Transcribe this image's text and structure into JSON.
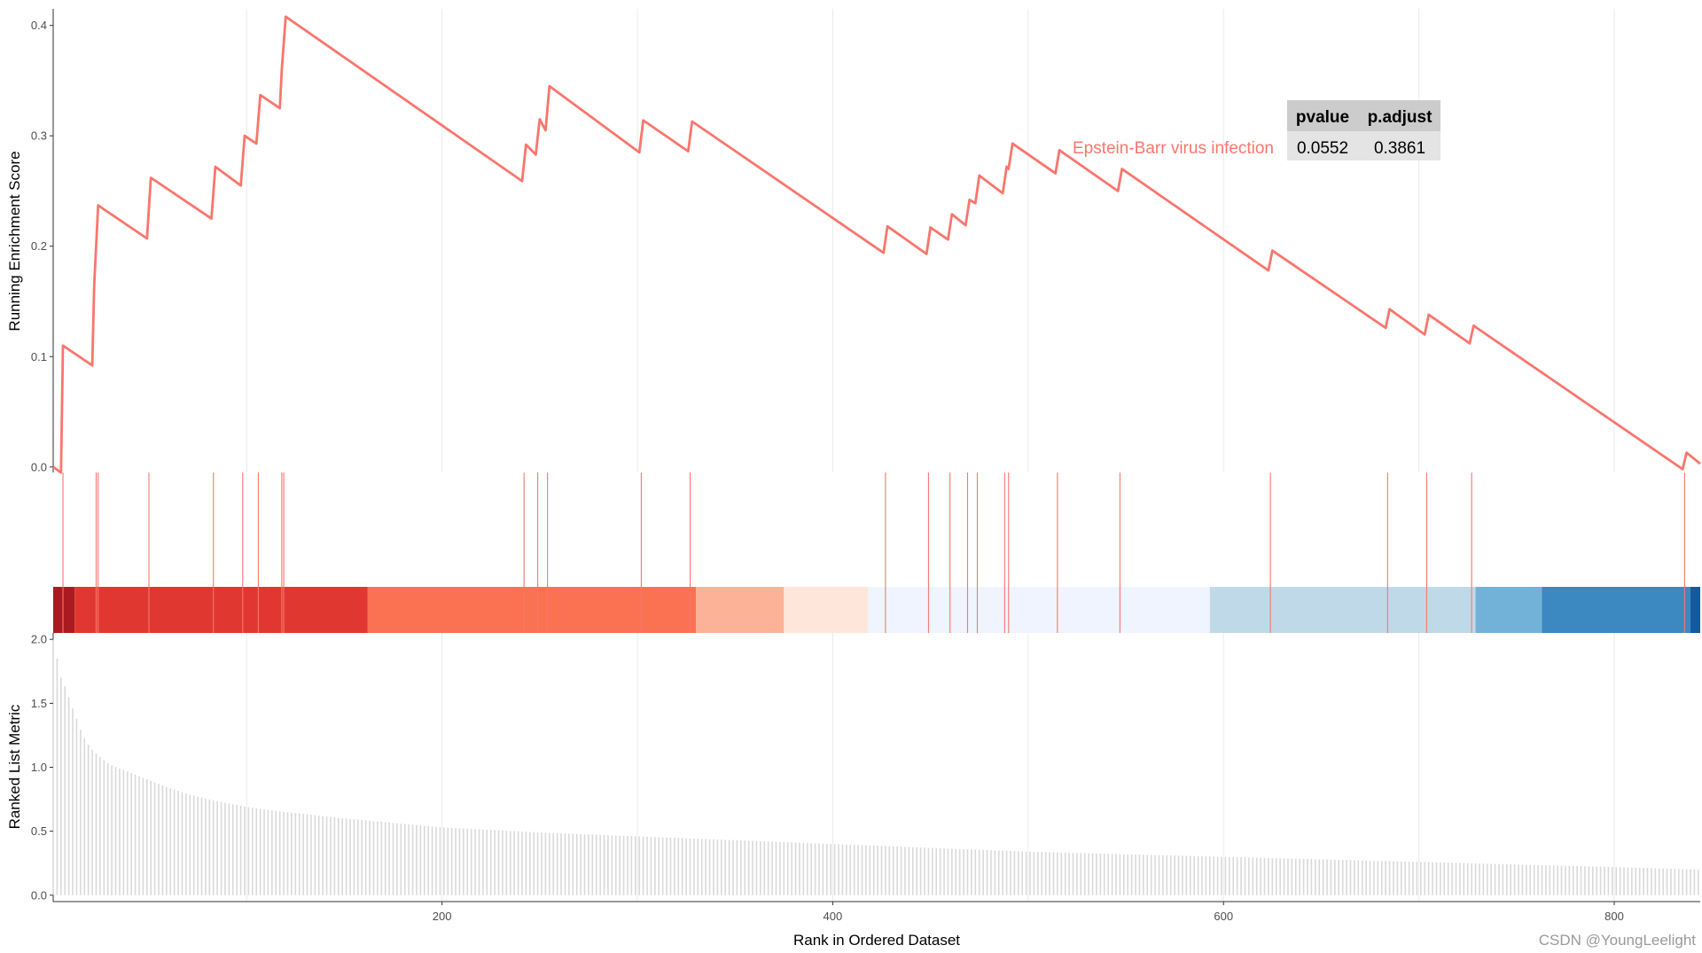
{
  "chart_data": {
    "type": "line",
    "gene_set": "Epstein-Barr virus infection",
    "line_color": "#F8766D",
    "stats_table": {
      "headers": [
        "pvalue",
        "p.adjust"
      ],
      "values": [
        "0.0552",
        "0.3861"
      ]
    },
    "x_axis": {
      "label": "Rank in Ordered Dataset",
      "range": [
        1,
        844
      ],
      "ticks": [
        200,
        400,
        600,
        800
      ],
      "tick_labels": [
        "200",
        "400",
        "600",
        "800"
      ]
    },
    "top_panel": {
      "ylabel": "Running Enrichment Score",
      "ylim": [
        -0.005,
        0.415
      ],
      "ticks": [
        0.0,
        0.1,
        0.2,
        0.3,
        0.4
      ],
      "tick_labels": [
        "0.0",
        "0.1",
        "0.2",
        "0.3",
        "0.4"
      ],
      "running_score": [
        [
          1,
          0
        ],
        [
          5,
          -0.005
        ],
        [
          6,
          0.11
        ],
        [
          21,
          0.092
        ],
        [
          22,
          0.165
        ],
        [
          24,
          0.237
        ],
        [
          49,
          0.207
        ],
        [
          51,
          0.262
        ],
        [
          82,
          0.225
        ],
        [
          84,
          0.272
        ],
        [
          97,
          0.255
        ],
        [
          99,
          0.3
        ],
        [
          105,
          0.293
        ],
        [
          107,
          0.337
        ],
        [
          117,
          0.325
        ],
        [
          118,
          0.36
        ],
        [
          120,
          0.408
        ],
        [
          241,
          0.259
        ],
        [
          243,
          0.292
        ],
        [
          248,
          0.283
        ],
        [
          250,
          0.315
        ],
        [
          253,
          0.305
        ],
        [
          255,
          0.345
        ],
        [
          301,
          0.285
        ],
        [
          303,
          0.314
        ],
        [
          326,
          0.286
        ],
        [
          328,
          0.313
        ],
        [
          426,
          0.194
        ],
        [
          428,
          0.218
        ],
        [
          448,
          0.193
        ],
        [
          450,
          0.217
        ],
        [
          459,
          0.206
        ],
        [
          461,
          0.229
        ],
        [
          468,
          0.219
        ],
        [
          470,
          0.242
        ],
        [
          473,
          0.239
        ],
        [
          475,
          0.264
        ],
        [
          487,
          0.248
        ],
        [
          489,
          0.272
        ],
        [
          490,
          0.27
        ],
        [
          492,
          0.293
        ],
        [
          514,
          0.266
        ],
        [
          516,
          0.287
        ],
        [
          546,
          0.25
        ],
        [
          548,
          0.27
        ],
        [
          623,
          0.178
        ],
        [
          625,
          0.196
        ],
        [
          683,
          0.126
        ],
        [
          685,
          0.143
        ],
        [
          703,
          0.12
        ],
        [
          705,
          0.138
        ],
        [
          726,
          0.112
        ],
        [
          728,
          0.128
        ],
        [
          835,
          -0.002
        ],
        [
          837,
          0.013
        ],
        [
          844,
          0.003
        ]
      ]
    },
    "middle_panel": {
      "hit_ranks": [
        6,
        23,
        24,
        50,
        83,
        98,
        106,
        118,
        119,
        242,
        249,
        254,
        302,
        327,
        427,
        449,
        460,
        469,
        474,
        488,
        490,
        515,
        547,
        624,
        684,
        704,
        727,
        836
      ],
      "color_bands": [
        {
          "from": 1,
          "to": 12,
          "color": "#A50F15"
        },
        {
          "from": 12,
          "to": 162,
          "color": "#DE2D26"
        },
        {
          "from": 162,
          "to": 330,
          "color": "#FB6A4A"
        },
        {
          "from": 330,
          "to": 375,
          "color": "#FCAE91"
        },
        {
          "from": 375,
          "to": 418,
          "color": "#FEE5D9"
        },
        {
          "from": 418,
          "to": 593,
          "color": "#EFF3FF"
        },
        {
          "from": 593,
          "to": 729,
          "color": "#BDD7E7"
        },
        {
          "from": 729,
          "to": 763,
          "color": "#6BAED6"
        },
        {
          "from": 763,
          "to": 839,
          "color": "#3182BD"
        },
        {
          "from": 839,
          "to": 844,
          "color": "#08519C"
        }
      ]
    },
    "bottom_panel": {
      "type": "bar",
      "ylabel": "Ranked List Metric",
      "ylim": [
        -0.05,
        2.05
      ],
      "ticks": [
        0.0,
        0.5,
        1.0,
        1.5,
        2.0
      ],
      "tick_labels": [
        "0.0",
        "0.5",
        "1.0",
        "1.5",
        "2.0"
      ],
      "bar_color": "#D9D9D9",
      "metric_by_rank": [
        [
          1,
          2.0
        ],
        [
          3,
          1.85
        ],
        [
          5,
          1.7
        ],
        [
          8,
          1.6
        ],
        [
          10,
          1.5
        ],
        [
          13,
          1.38
        ],
        [
          16,
          1.25
        ],
        [
          20,
          1.15
        ],
        [
          25,
          1.08
        ],
        [
          30,
          1.02
        ],
        [
          40,
          0.96
        ],
        [
          50,
          0.9
        ],
        [
          60,
          0.84
        ],
        [
          70,
          0.79
        ],
        [
          80,
          0.75
        ],
        [
          100,
          0.69
        ],
        [
          120,
          0.65
        ],
        [
          150,
          0.6
        ],
        [
          200,
          0.53
        ],
        [
          250,
          0.49
        ],
        [
          300,
          0.46
        ],
        [
          350,
          0.43
        ],
        [
          400,
          0.4
        ],
        [
          450,
          0.37
        ],
        [
          500,
          0.34
        ],
        [
          550,
          0.32
        ],
        [
          600,
          0.3
        ],
        [
          650,
          0.28
        ],
        [
          700,
          0.26
        ],
        [
          750,
          0.24
        ],
        [
          800,
          0.22
        ],
        [
          844,
          0.2
        ]
      ]
    }
  },
  "watermark": "CSDN @YoungLeelight"
}
